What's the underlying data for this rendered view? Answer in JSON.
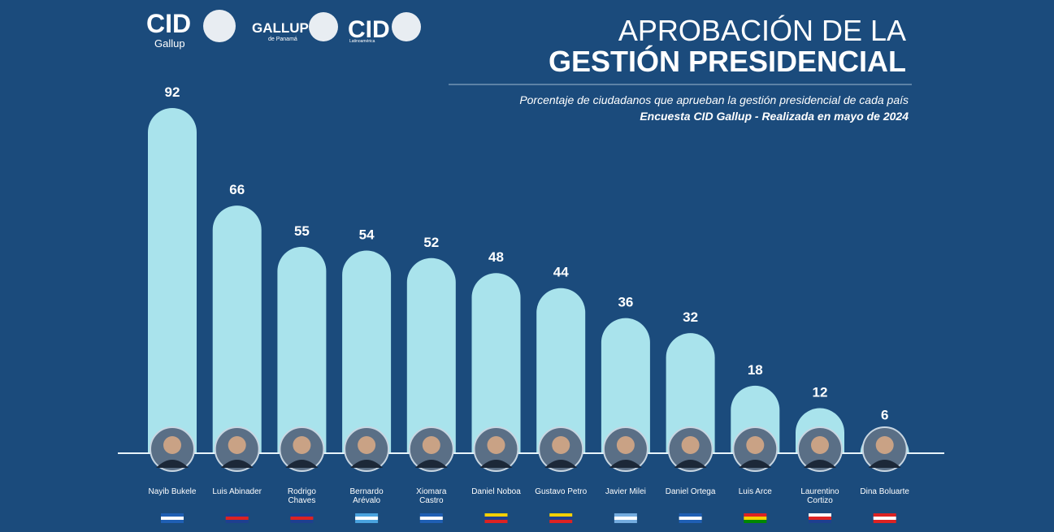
{
  "chart_data": {
    "type": "bar",
    "title": [
      "APROBACIÓN DE LA",
      "GESTIÓN PRESIDENCIAL"
    ],
    "subtitle": "Porcentaje de ciudadanos que aprueban la gestión presidencial de cada país",
    "source": "Encuesta CID Gallup - Realizada en mayo de 2024",
    "logos": [
      [
        "CID",
        "Gallup"
      ],
      [
        "GALLUP",
        "de Panamá"
      ],
      [
        "CID",
        "Latinoamérica"
      ]
    ],
    "categories": [
      "Nayib Bukele",
      "Luis Abinader",
      "Rodrigo Chaves",
      "Bernardo Arévalo",
      "Xiomara Castro",
      "Daniel Noboa",
      "Gustavo Petro",
      "Javier Milei",
      "Daniel Ortega",
      "Luis Arce",
      "Laurentino Cortizo",
      "Dina Boluarte"
    ],
    "values": [
      92,
      66,
      55,
      54,
      52,
      48,
      44,
      36,
      32,
      18,
      12,
      6
    ],
    "color": "#a9e3ec"
  }
}
